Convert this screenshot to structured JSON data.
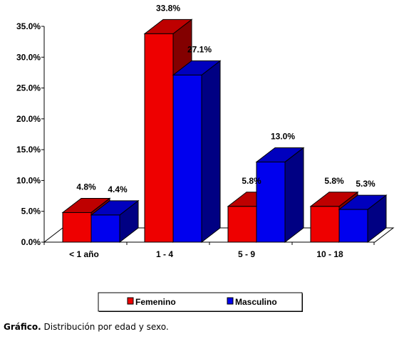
{
  "chart_data": {
    "type": "bar",
    "categories": [
      "< 1 año",
      "1 - 4",
      "5 - 9",
      "10 - 18"
    ],
    "series": [
      {
        "name": "Femenino",
        "values": [
          4.8,
          33.8,
          5.8,
          5.8
        ],
        "labels": [
          "4.8%",
          "33.8%",
          "5.8%",
          "5.8%"
        ],
        "color": "#ee0000"
      },
      {
        "name": "Masculino",
        "values": [
          4.4,
          27.1,
          13.0,
          5.3
        ],
        "labels": [
          "4.4%",
          "27.1%",
          "13.0%",
          "5.3%"
        ],
        "color": "#0000ee"
      }
    ],
    "yticks": [
      0,
      5,
      10,
      15,
      20,
      25,
      30,
      35
    ],
    "ytick_labels": [
      "0.0%",
      "5.0%",
      "10.0%",
      "15.0%",
      "20.0%",
      "25.0%",
      "30.0%",
      "35.0%"
    ],
    "ylim": [
      0,
      35
    ],
    "grid": false,
    "three_d": true,
    "legend_placement": "bottom"
  },
  "caption": {
    "label": "Gráfico.",
    "text": " Distribución por edad y sexo."
  }
}
